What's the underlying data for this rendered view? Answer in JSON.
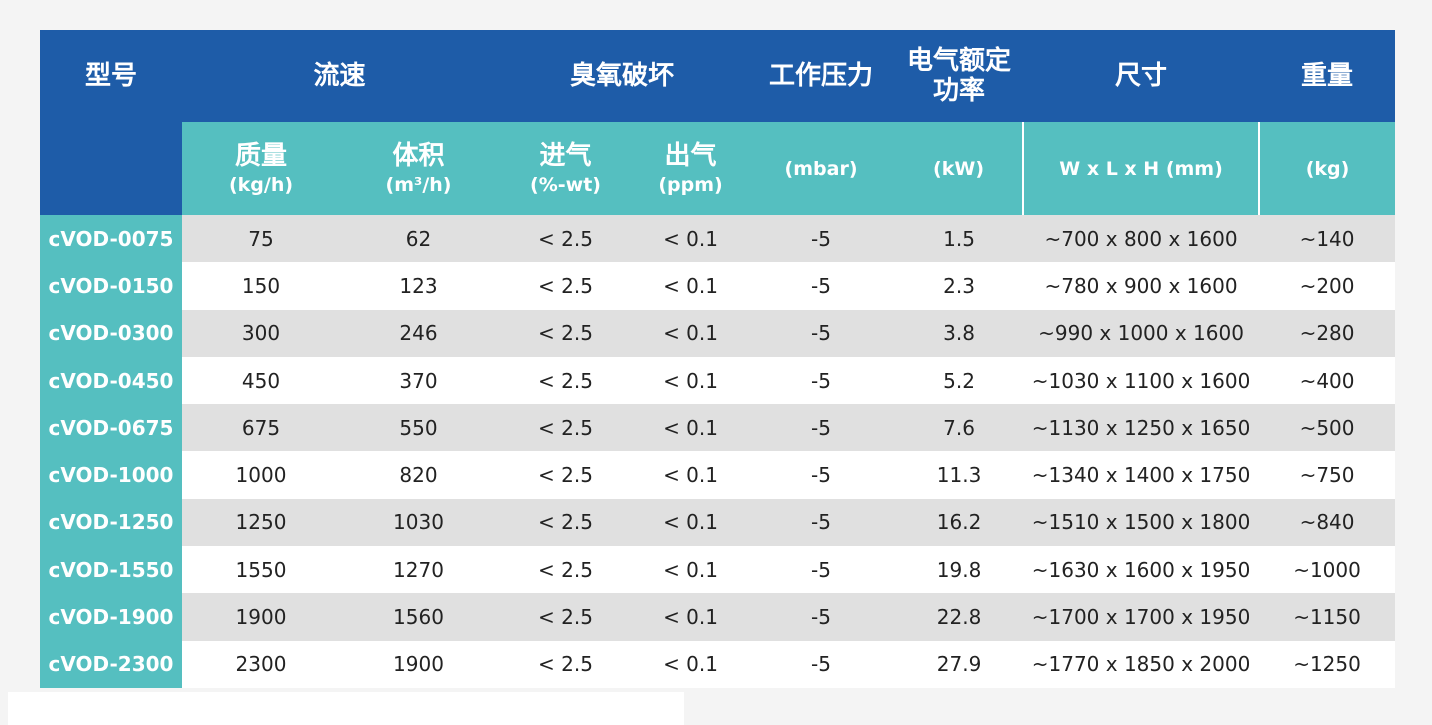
{
  "table": {
    "header_top": {
      "model": "型号",
      "flow": "流速",
      "ozone": "臭氧破坏",
      "pressure": "工作压力",
      "power_line1": "电气额定",
      "power_line2": "功率",
      "size": "尺寸",
      "weight": "重量"
    },
    "header_sub": {
      "mass": {
        "label": "质量",
        "unit": "(kg/h)"
      },
      "volume": {
        "label": "体积",
        "unit": "(m³/h)"
      },
      "inlet": {
        "label": "进气",
        "unit": "(%-wt)"
      },
      "outlet": {
        "label": "出气",
        "unit": "(ppm)"
      },
      "pressure_unit": "(mbar)",
      "power_unit": "(kW)",
      "size_unit": "W x L x H (mm)",
      "weight_unit": "(kg)"
    },
    "rows": [
      {
        "model": "cVOD-0075",
        "mass": "75",
        "volume": "62",
        "inlet": "< 2.5",
        "outlet": "< 0.1",
        "pressure": "-5",
        "power": "1.5",
        "size": "~700 x 800 x 1600",
        "weight": "~140"
      },
      {
        "model": "cVOD-0150",
        "mass": "150",
        "volume": "123",
        "inlet": "< 2.5",
        "outlet": "< 0.1",
        "pressure": "-5",
        "power": "2.3",
        "size": "~780 x 900 x 1600",
        "weight": "~200"
      },
      {
        "model": "cVOD-0300",
        "mass": "300",
        "volume": "246",
        "inlet": "< 2.5",
        "outlet": "< 0.1",
        "pressure": "-5",
        "power": "3.8",
        "size": "~990 x 1000 x 1600",
        "weight": "~280"
      },
      {
        "model": "cVOD-0450",
        "mass": "450",
        "volume": "370",
        "inlet": "< 2.5",
        "outlet": "< 0.1",
        "pressure": "-5",
        "power": "5.2",
        "size": "~1030 x 1100 x 1600",
        "weight": "~400"
      },
      {
        "model": "cVOD-0675",
        "mass": "675",
        "volume": "550",
        "inlet": "< 2.5",
        "outlet": "< 0.1",
        "pressure": "-5",
        "power": "7.6",
        "size": "~1130 x 1250 x 1650",
        "weight": "~500"
      },
      {
        "model": "cVOD-1000",
        "mass": "1000",
        "volume": "820",
        "inlet": "< 2.5",
        "outlet": "< 0.1",
        "pressure": "-5",
        "power": "11.3",
        "size": "~1340 x 1400 x 1750",
        "weight": "~750"
      },
      {
        "model": "cVOD-1250",
        "mass": "1250",
        "volume": "1030",
        "inlet": "< 2.5",
        "outlet": "< 0.1",
        "pressure": "-5",
        "power": "16.2",
        "size": "~1510 x 1500 x 1800",
        "weight": "~840"
      },
      {
        "model": "cVOD-1550",
        "mass": "1550",
        "volume": "1270",
        "inlet": "< 2.5",
        "outlet": "< 0.1",
        "pressure": "-5",
        "power": "19.8",
        "size": "~1630 x 1600 x 1950",
        "weight": "~1000"
      },
      {
        "model": "cVOD-1900",
        "mass": "1900",
        "volume": "1560",
        "inlet": "< 2.5",
        "outlet": "< 0.1",
        "pressure": "-5",
        "power": "22.8",
        "size": "~1700 x 1700 x 1950",
        "weight": "~1150"
      },
      {
        "model": "cVOD-2300",
        "mass": "2300",
        "volume": "1900",
        "inlet": "< 2.5",
        "outlet": "< 0.1",
        "pressure": "-5",
        "power": "27.9",
        "size": "~1770 x 1850 x 2000",
        "weight": "~1250"
      }
    ]
  },
  "colors": {
    "header_blue": "#1e5ca8",
    "header_teal": "#55bfc0",
    "row_grey": "#e0e0e0",
    "row_white": "#ffffff"
  }
}
